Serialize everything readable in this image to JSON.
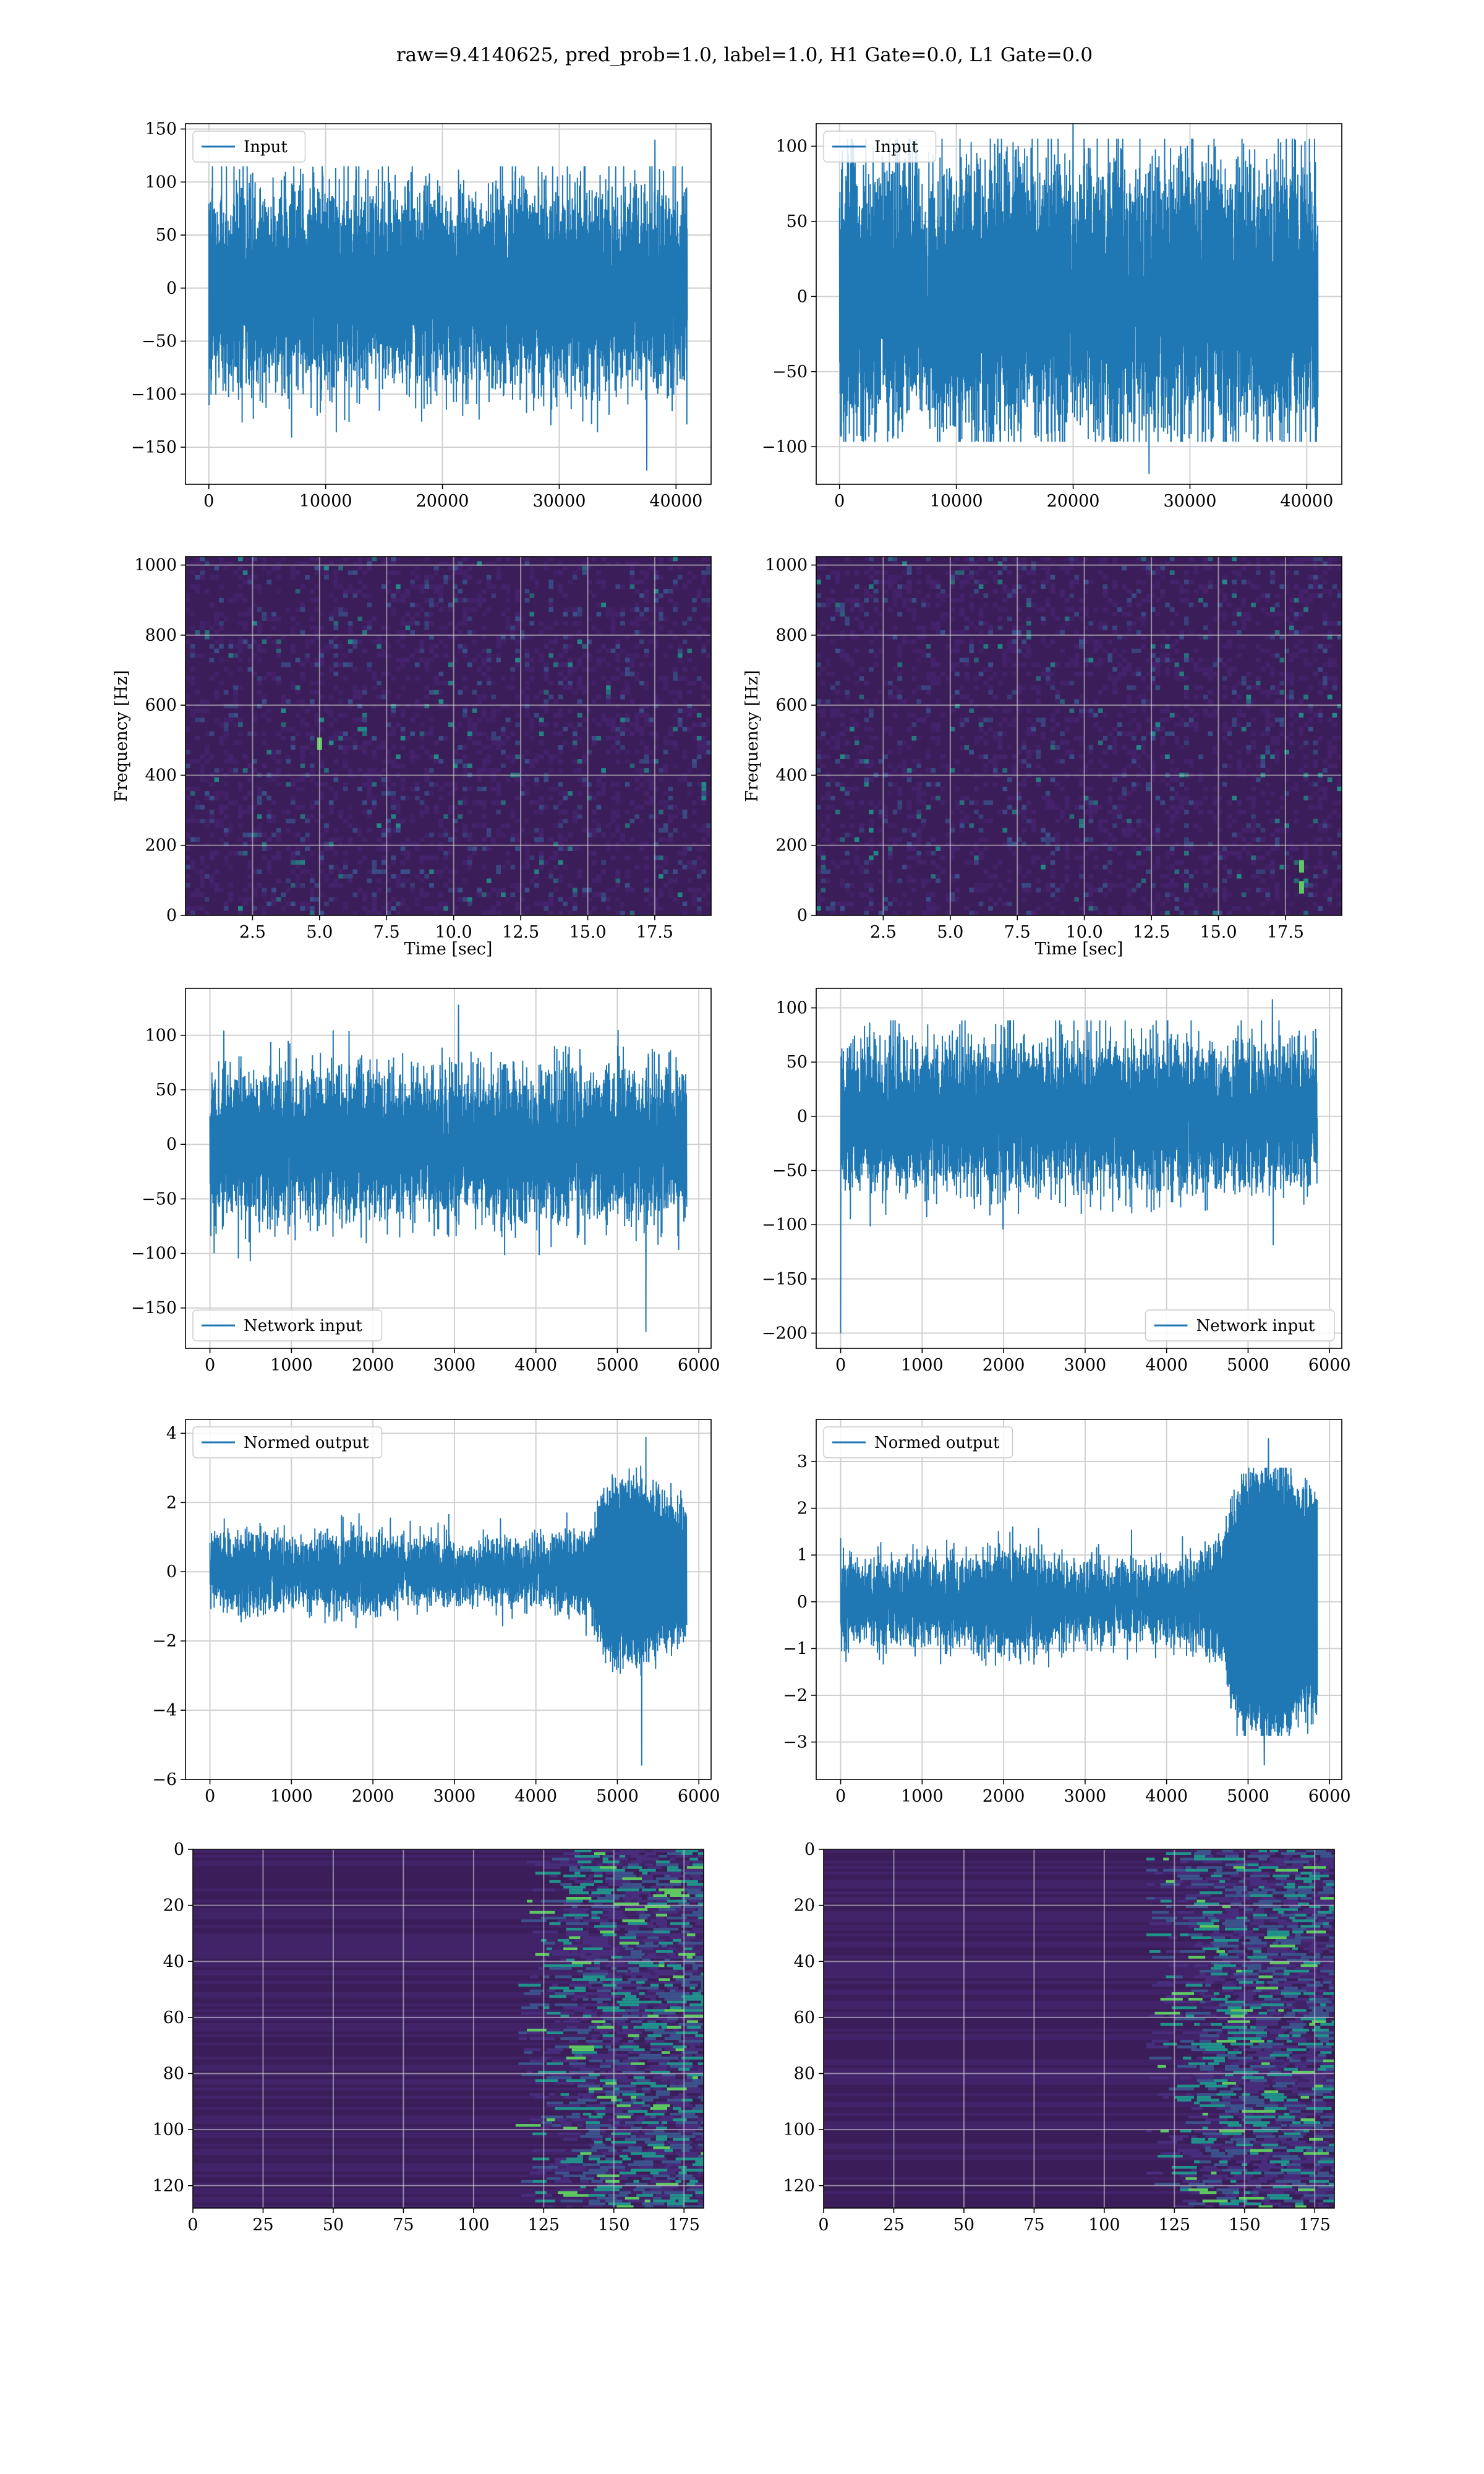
{
  "figure": {
    "suptitle": "raw=9.4140625, pred_prob=1.0, label=1.0, H1 Gate=0.0, L1 Gate=0.0"
  },
  "colors": {
    "series": "#1f77b4",
    "grid": "#d0d0d0",
    "heat_bg": "#3b1e59",
    "viridis": [
      "#440154",
      "#3b528b",
      "#21918c",
      "#5ec962",
      "#fde725"
    ]
  },
  "chart_data": [
    {
      "panel": "input-h1",
      "type": "line",
      "legend": [
        "Input"
      ],
      "legend_loc": "upper-left",
      "xlim": [
        -2000,
        43000
      ],
      "ylim": [
        -185,
        155
      ],
      "xticks": [
        0,
        10000,
        20000,
        30000,
        40000
      ],
      "yticks": [
        -150,
        -100,
        -50,
        0,
        50,
        100,
        150
      ],
      "xlabel": "",
      "ylabel": "",
      "grid": true,
      "signal": {
        "x_end": 40960,
        "n": 2400,
        "envelope": [
          [
            0,
            62
          ],
          [
            1,
            62
          ]
        ],
        "sigma": 28,
        "max": 140,
        "min": -172,
        "min_at": 37500,
        "max_at": 38200
      }
    },
    {
      "panel": "input-l1",
      "type": "line",
      "legend": [
        "Input"
      ],
      "legend_loc": "upper-left",
      "xlim": [
        -2000,
        43000
      ],
      "ylim": [
        -125,
        115
      ],
      "xticks": [
        0,
        10000,
        20000,
        30000,
        40000
      ],
      "yticks": [
        -100,
        -50,
        0,
        50,
        100
      ],
      "xlabel": "",
      "ylabel": "",
      "grid": true,
      "signal": {
        "x_end": 40960,
        "n": 2400,
        "envelope": [
          [
            0,
            60
          ],
          [
            1,
            60
          ]
        ],
        "sigma": 27,
        "max": 128,
        "min": -118,
        "max_at": 20000,
        "min_at": 26500
      }
    },
    {
      "panel": "spectrogram-h1",
      "type": "heatmap",
      "xlim": [
        0,
        19.6
      ],
      "ylim": [
        0,
        1024
      ],
      "xticks": [
        2.5,
        5.0,
        7.5,
        10.0,
        12.5,
        15.0,
        17.5
      ],
      "yticks": [
        0,
        200,
        400,
        600,
        800,
        1000
      ],
      "xlabel": "Time [sec]",
      "ylabel": "Frequency [Hz]",
      "grid": true,
      "hotspots": [
        {
          "t": 5.0,
          "f": 490
        }
      ]
    },
    {
      "panel": "spectrogram-l1",
      "type": "heatmap",
      "xlim": [
        0,
        19.6
      ],
      "ylim": [
        0,
        1024
      ],
      "xticks": [
        2.5,
        5.0,
        7.5,
        10.0,
        12.5,
        15.0,
        17.5
      ],
      "yticks": [
        0,
        200,
        400,
        600,
        800,
        1000
      ],
      "xlabel": "Time [sec]",
      "ylabel": "Frequency [Hz]",
      "grid": true,
      "hotspots": [
        {
          "t": 18.1,
          "f": 80
        },
        {
          "t": 18.1,
          "f": 140
        }
      ]
    },
    {
      "panel": "network-input-h1",
      "type": "line",
      "legend": [
        "Network input"
      ],
      "legend_loc": "lower-left",
      "xlim": [
        -300,
        6150
      ],
      "ylim": [
        -187,
        143
      ],
      "xticks": [
        0,
        1000,
        2000,
        3000,
        4000,
        5000,
        6000
      ],
      "yticks": [
        -150,
        -100,
        -50,
        0,
        50,
        100
      ],
      "xlabel": "",
      "ylabel": "",
      "grid": true,
      "signal": {
        "x_end": 5850,
        "n": 2400,
        "envelope": [
          [
            0,
            42
          ],
          [
            1,
            42
          ]
        ],
        "sigma": 22,
        "max": 128,
        "min": -172,
        "max_at": 3050,
        "min_at": 5350
      }
    },
    {
      "panel": "network-input-l1",
      "type": "line",
      "legend": [
        "Network input"
      ],
      "legend_loc": "lower-right",
      "xlim": [
        -300,
        6150
      ],
      "ylim": [
        -214,
        118
      ],
      "xticks": [
        0,
        1000,
        2000,
        3000,
        4000,
        5000,
        6000
      ],
      "yticks": [
        -200,
        -150,
        -100,
        -50,
        0,
        50,
        100
      ],
      "xlabel": "",
      "ylabel": "",
      "grid": true,
      "signal": {
        "x_end": 5850,
        "n": 2400,
        "envelope": [
          [
            0,
            42
          ],
          [
            1,
            42
          ]
        ],
        "sigma": 21,
        "max": 108,
        "min": -200,
        "max_at": 5300,
        "min_at": 0
      }
    },
    {
      "panel": "normed-output-h1",
      "type": "line",
      "legend": [
        "Normed output"
      ],
      "legend_loc": "upper-left",
      "xlim": [
        -300,
        6150
      ],
      "ylim": [
        -6,
        4.4
      ],
      "xticks": [
        0,
        1000,
        2000,
        3000,
        4000,
        5000,
        6000
      ],
      "yticks": [
        -6,
        -4,
        -2,
        0,
        2,
        4
      ],
      "xlabel": "",
      "ylabel": "",
      "grid": true,
      "signal": {
        "x_end": 5850,
        "n": 2400,
        "envelope": [
          [
            0,
            0.65
          ],
          [
            0.1,
            0.8
          ],
          [
            0.2,
            0.55
          ],
          [
            0.3,
            0.8
          ],
          [
            0.4,
            0.55
          ],
          [
            0.55,
            0.45
          ],
          [
            0.7,
            0.6
          ],
          [
            0.8,
            0.9
          ],
          [
            0.83,
            2.2
          ],
          [
            0.9,
            2.4
          ],
          [
            0.96,
            1.8
          ],
          [
            1,
            1.6
          ]
        ],
        "sigma": 0.35,
        "max": 3.9,
        "min": -5.6,
        "max_at": 5350,
        "min_at": 5300
      }
    },
    {
      "panel": "normed-output-l1",
      "type": "line",
      "legend": [
        "Normed output"
      ],
      "legend_loc": "upper-left",
      "xlim": [
        -300,
        6150
      ],
      "ylim": [
        -3.8,
        3.9
      ],
      "xticks": [
        0,
        1000,
        2000,
        3000,
        4000,
        5000,
        6000
      ],
      "yticks": [
        -3,
        -2,
        -1,
        0,
        1,
        2,
        3
      ],
      "xlabel": "",
      "ylabel": "",
      "grid": true,
      "signal": {
        "x_end": 5850,
        "n": 2400,
        "envelope": [
          [
            0,
            0.6
          ],
          [
            0.2,
            0.6
          ],
          [
            0.35,
            0.8
          ],
          [
            0.5,
            0.5
          ],
          [
            0.65,
            0.45
          ],
          [
            0.75,
            0.6
          ],
          [
            0.8,
            1.1
          ],
          [
            0.84,
            2.6
          ],
          [
            0.9,
            2.8
          ],
          [
            0.96,
            2.3
          ],
          [
            1,
            2.0
          ]
        ],
        "sigma": 0.3,
        "max": 3.5,
        "min": -3.5,
        "max_at": 5250,
        "min_at": 5200
      }
    },
    {
      "panel": "feature-map-h1",
      "type": "heatmap",
      "xlim": [
        0,
        182
      ],
      "ylim": [
        128,
        0
      ],
      "xticks": [
        0,
        25,
        50,
        75,
        100,
        125,
        150,
        175
      ],
      "yticks": [
        0,
        20,
        40,
        60,
        80,
        100,
        120
      ],
      "xlabel": "",
      "ylabel": "",
      "grid": true,
      "activity_onset": 125
    },
    {
      "panel": "feature-map-l1",
      "type": "heatmap",
      "xlim": [
        0,
        182
      ],
      "ylim": [
        128,
        0
      ],
      "xticks": [
        0,
        25,
        50,
        75,
        100,
        125,
        150,
        175
      ],
      "yticks": [
        0,
        20,
        40,
        60,
        80,
        100,
        120
      ],
      "xlabel": "",
      "ylabel": "",
      "grid": true,
      "activity_onset": 125
    }
  ]
}
